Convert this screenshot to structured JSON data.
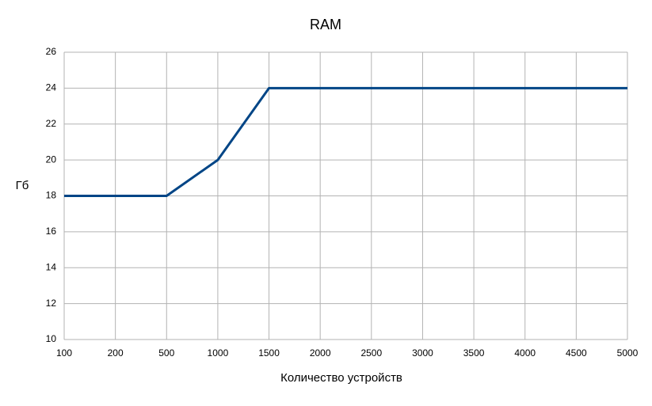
{
  "chart_data": {
    "type": "line",
    "title": "RAM",
    "x_label": "Количество устройств",
    "y_label": "Гб",
    "categories": [
      "100",
      "200",
      "500",
      "1000",
      "1500",
      "2000",
      "2500",
      "3000",
      "3500",
      "4000",
      "4500",
      "5000"
    ],
    "series": [
      {
        "name": "RAM",
        "color": "#004586",
        "values": [
          18,
          18,
          18,
          20,
          24,
          24,
          24,
          24,
          24,
          24,
          24,
          24
        ]
      }
    ],
    "ylim": [
      10,
      26
    ],
    "yticks": [
      10,
      12,
      14,
      16,
      18,
      20,
      22,
      24,
      26
    ],
    "grid": true
  }
}
